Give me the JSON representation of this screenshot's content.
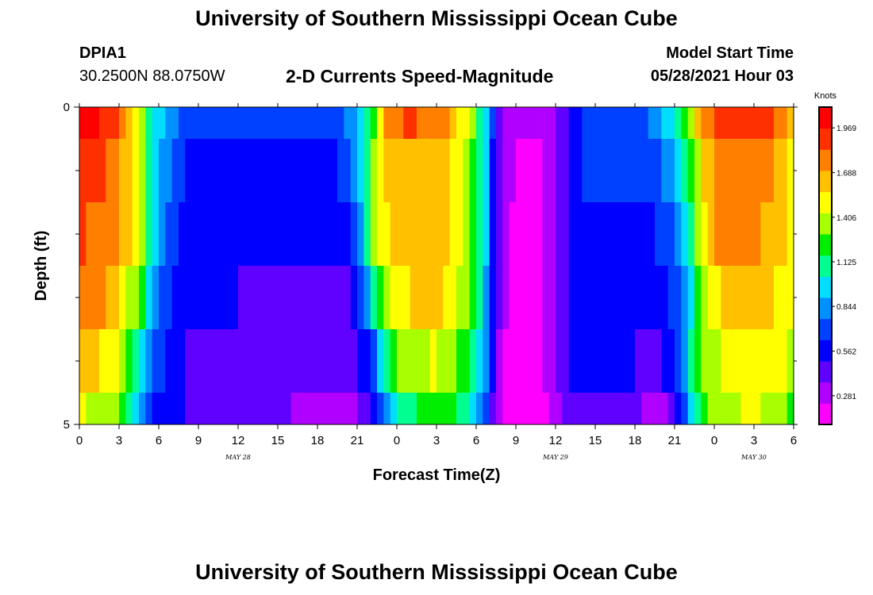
{
  "header": {
    "title": "University of Southern Mississippi Ocean Cube",
    "station": "DPIA1",
    "coords": "30.2500N  88.0750W",
    "subtitle": "2-D Currents Speed-Magnitude",
    "start_label": "Model Start Time",
    "start_value": "05/28/2021 Hour 03"
  },
  "footer": {
    "title": "University of Southern Mississippi Ocean Cube"
  },
  "chart_data": {
    "type": "heatmap",
    "title": "2-D Currents Speed-Magnitude",
    "xlabel": "Forecast Time(Z)",
    "ylabel": "Depth (ft)",
    "x_start_hour": 0,
    "x_end_hour": 54,
    "x_ticks": [
      {
        "hour": 0,
        "label": "0"
      },
      {
        "hour": 3,
        "label": "3"
      },
      {
        "hour": 6,
        "label": "6"
      },
      {
        "hour": 9,
        "label": "9"
      },
      {
        "hour": 12,
        "label": "12"
      },
      {
        "hour": 15,
        "label": "15"
      },
      {
        "hour": 18,
        "label": "18"
      },
      {
        "hour": 21,
        "label": "21"
      },
      {
        "hour": 24,
        "label": "0"
      },
      {
        "hour": 27,
        "label": "3"
      },
      {
        "hour": 30,
        "label": "6"
      },
      {
        "hour": 33,
        "label": "9"
      },
      {
        "hour": 36,
        "label": "12"
      },
      {
        "hour": 39,
        "label": "15"
      },
      {
        "hour": 42,
        "label": "18"
      },
      {
        "hour": 45,
        "label": "21"
      },
      {
        "hour": 48,
        "label": "0"
      },
      {
        "hour": 51,
        "label": "3"
      },
      {
        "hour": 54,
        "label": "6"
      }
    ],
    "date_labels": [
      {
        "hour": 12,
        "label": "MAY 28"
      },
      {
        "hour": 36,
        "label": "MAY 29"
      },
      {
        "hour": 51,
        "label": "MAY 30"
      }
    ],
    "y_range": [
      0,
      5
    ],
    "y_tick_labels": [
      {
        "depth": 0,
        "label": "0"
      },
      {
        "depth": 5,
        "label": "5"
      }
    ],
    "y_minor_ticks": [
      1,
      2,
      3,
      4
    ],
    "depth_levels": [
      {
        "from": 0.0,
        "to": 0.5
      },
      {
        "from": 0.5,
        "to": 1.5
      },
      {
        "from": 1.5,
        "to": 2.5
      },
      {
        "from": 2.5,
        "to": 3.5
      },
      {
        "from": 3.5,
        "to": 4.5
      },
      {
        "from": 4.5,
        "to": 5.0
      }
    ],
    "speed_keyframes_by_level": [
      [
        [
          0,
          2.0
        ],
        [
          2,
          1.95
        ],
        [
          3,
          1.8
        ],
        [
          4.5,
          1.45
        ],
        [
          5.5,
          1.05
        ],
        [
          6.5,
          0.85
        ],
        [
          8,
          0.7
        ],
        [
          12,
          0.68
        ],
        [
          16,
          0.68
        ],
        [
          19,
          0.7
        ],
        [
          20,
          0.78
        ],
        [
          21,
          0.9
        ],
        [
          22,
          1.15
        ],
        [
          22.5,
          1.4
        ],
        [
          23,
          1.7
        ],
        [
          24.5,
          1.85
        ],
        [
          27,
          1.8
        ],
        [
          28,
          1.7
        ],
        [
          29.5,
          1.4
        ],
        [
          30.5,
          1.05
        ],
        [
          31,
          0.8
        ],
        [
          31.5,
          0.55
        ],
        [
          32,
          0.35
        ],
        [
          33,
          0.25
        ],
        [
          35,
          0.25
        ],
        [
          36.5,
          0.45
        ],
        [
          37.5,
          0.6
        ],
        [
          39,
          0.68
        ],
        [
          42,
          0.7
        ],
        [
          43.5,
          0.8
        ],
        [
          45,
          1.0
        ],
        [
          46,
          1.3
        ],
        [
          47,
          1.7
        ],
        [
          48,
          1.85
        ],
        [
          51,
          1.97
        ],
        [
          53,
          1.8
        ],
        [
          54,
          1.5
        ]
      ],
      [
        [
          0,
          1.9
        ],
        [
          2,
          1.85
        ],
        [
          3,
          1.75
        ],
        [
          4.5,
          1.45
        ],
        [
          5.5,
          1.05
        ],
        [
          6.5,
          0.8
        ],
        [
          8,
          0.6
        ],
        [
          12,
          0.55
        ],
        [
          16,
          0.55
        ],
        [
          19,
          0.6
        ],
        [
          20.5,
          0.75
        ],
        [
          21.5,
          1.0
        ],
        [
          22.5,
          1.5
        ],
        [
          24,
          1.7
        ],
        [
          27,
          1.65
        ],
        [
          28,
          1.55
        ],
        [
          29.5,
          1.35
        ],
        [
          30.5,
          1.05
        ],
        [
          31,
          0.75
        ],
        [
          31.5,
          0.5
        ],
        [
          32,
          0.3
        ],
        [
          33,
          0.22
        ],
        [
          35,
          0.22
        ],
        [
          36.5,
          0.45
        ],
        [
          37.5,
          0.6
        ],
        [
          39,
          0.68
        ],
        [
          42,
          0.65
        ],
        [
          44,
          0.75
        ],
        [
          45.5,
          0.95
        ],
        [
          46.5,
          1.35
        ],
        [
          47.5,
          1.65
        ],
        [
          49,
          1.8
        ],
        [
          51,
          1.8
        ],
        [
          53,
          1.65
        ],
        [
          54,
          1.5
        ]
      ],
      [
        [
          0,
          1.85
        ],
        [
          2,
          1.8
        ],
        [
          3,
          1.7
        ],
        [
          4.5,
          1.45
        ],
        [
          5.5,
          1.0
        ],
        [
          6.5,
          0.75
        ],
        [
          8,
          0.55
        ],
        [
          12,
          0.5
        ],
        [
          16,
          0.5
        ],
        [
          19,
          0.52
        ],
        [
          20.5,
          0.62
        ],
        [
          21.5,
          0.9
        ],
        [
          22.5,
          1.45
        ],
        [
          24,
          1.65
        ],
        [
          27,
          1.65
        ],
        [
          28,
          1.55
        ],
        [
          29.5,
          1.35
        ],
        [
          30.5,
          1.05
        ],
        [
          31,
          0.75
        ],
        [
          31.5,
          0.5
        ],
        [
          32,
          0.3
        ],
        [
          33,
          0.2
        ],
        [
          35,
          0.2
        ],
        [
          36.5,
          0.45
        ],
        [
          37.5,
          0.6
        ],
        [
          40,
          0.6
        ],
        [
          43,
          0.6
        ],
        [
          45,
          0.72
        ],
        [
          46,
          1.0
        ],
        [
          47,
          1.45
        ],
        [
          48,
          1.7
        ],
        [
          51,
          1.75
        ],
        [
          53,
          1.6
        ],
        [
          54,
          1.5
        ]
      ],
      [
        [
          0,
          1.75
        ],
        [
          2,
          1.7
        ],
        [
          3,
          1.55
        ],
        [
          4.5,
          1.3
        ],
        [
          5.5,
          0.9
        ],
        [
          6.5,
          0.7
        ],
        [
          8,
          0.55
        ],
        [
          12,
          0.5
        ],
        [
          15,
          0.48
        ],
        [
          18,
          0.45
        ],
        [
          20.5,
          0.5
        ],
        [
          21.5,
          0.7
        ],
        [
          22.5,
          1.2
        ],
        [
          24,
          1.55
        ],
        [
          27,
          1.6
        ],
        [
          28,
          1.5
        ],
        [
          29.5,
          1.3
        ],
        [
          30.5,
          1.0
        ],
        [
          31,
          0.7
        ],
        [
          31.5,
          0.45
        ],
        [
          32,
          0.3
        ],
        [
          33,
          0.2
        ],
        [
          35,
          0.2
        ],
        [
          36.5,
          0.4
        ],
        [
          37.5,
          0.55
        ],
        [
          40,
          0.58
        ],
        [
          44,
          0.55
        ],
        [
          45.5,
          0.75
        ],
        [
          46.5,
          1.1
        ],
        [
          47.5,
          1.45
        ],
        [
          48.5,
          1.6
        ],
        [
          51,
          1.65
        ],
        [
          53,
          1.55
        ],
        [
          54,
          1.5
        ]
      ],
      [
        [
          0,
          1.6
        ],
        [
          2,
          1.55
        ],
        [
          3,
          1.45
        ],
        [
          4.5,
          1.1
        ],
        [
          5.5,
          0.8
        ],
        [
          6.5,
          0.6
        ],
        [
          8,
          0.5
        ],
        [
          12,
          0.48
        ],
        [
          16,
          0.46
        ],
        [
          19,
          0.45
        ],
        [
          21,
          0.48
        ],
        [
          22,
          0.6
        ],
        [
          23,
          1.0
        ],
        [
          24,
          1.3
        ],
        [
          27,
          1.45
        ],
        [
          28,
          1.35
        ],
        [
          29.5,
          1.2
        ],
        [
          30.5,
          0.95
        ],
        [
          31,
          0.7
        ],
        [
          31.5,
          0.45
        ],
        [
          32,
          0.25
        ],
        [
          33,
          0.15
        ],
        [
          35,
          0.2
        ],
        [
          36.5,
          0.4
        ],
        [
          37.5,
          0.55
        ],
        [
          40,
          0.55
        ],
        [
          42,
          0.5
        ],
        [
          43.5,
          0.4
        ],
        [
          45,
          0.6
        ],
        [
          46,
          0.95
        ],
        [
          47,
          1.3
        ],
        [
          48.5,
          1.45
        ],
        [
          51,
          1.5
        ],
        [
          53,
          1.45
        ],
        [
          54,
          1.4
        ]
      ],
      [
        [
          0,
          1.45
        ],
        [
          2,
          1.4
        ],
        [
          3,
          1.3
        ],
        [
          4.5,
          0.95
        ],
        [
          5.5,
          0.65
        ],
        [
          6.5,
          0.55
        ],
        [
          8,
          0.5
        ],
        [
          12,
          0.45
        ],
        [
          15,
          0.38
        ],
        [
          18,
          0.33
        ],
        [
          21,
          0.35
        ],
        [
          22.5,
          0.6
        ],
        [
          24,
          1.05
        ],
        [
          27,
          1.3
        ],
        [
          28,
          1.2
        ],
        [
          29.5,
          1.05
        ],
        [
          30.5,
          0.8
        ],
        [
          31,
          0.6
        ],
        [
          31.5,
          0.35
        ],
        [
          32,
          0.2
        ],
        [
          33,
          0.08
        ],
        [
          35,
          0.15
        ],
        [
          36.5,
          0.35
        ],
        [
          37.5,
          0.5
        ],
        [
          41,
          0.45
        ],
        [
          44,
          0.28
        ],
        [
          45,
          0.45
        ],
        [
          46,
          0.85
        ],
        [
          47,
          1.25
        ],
        [
          48.5,
          1.4
        ],
        [
          51,
          1.45
        ],
        [
          53,
          1.35
        ],
        [
          54,
          1.2
        ]
      ]
    ],
    "colorbar": {
      "title": "Knots",
      "range": [
        0.1,
        2.1
      ],
      "tick_values": [
        1.969,
        1.688,
        1.406,
        1.125,
        0.844,
        0.562,
        0.281
      ],
      "tick_labels": [
        "1.969",
        "1.688",
        "1.406",
        "1.125",
        "0.844",
        "0.562",
        "0.281"
      ],
      "colors": [
        "#ff00ff",
        "#b000ff",
        "#6000ff",
        "#0000ff",
        "#0040ff",
        "#0090ff",
        "#00ddff",
        "#00ff90",
        "#00ee00",
        "#a8ff00",
        "#ffff00",
        "#ffc000",
        "#ff8000",
        "#ff3000",
        "#ff0000"
      ]
    }
  }
}
